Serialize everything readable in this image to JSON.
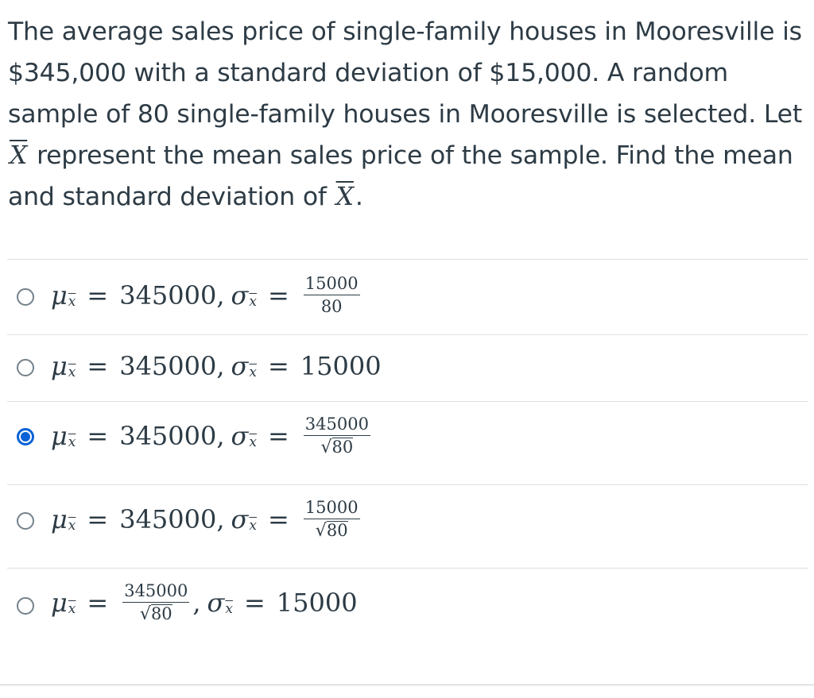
{
  "question": {
    "part1": "The average sales price of single-family houses in Mooresville is $345,000 with a standard deviation of $15,000. A random sample of 80 single-family houses in Mooresville is selected. Let",
    "symbol1": "X",
    "part2": "represent the mean sales price of the sample. Find the mean and standard deviation of",
    "symbol2": "X",
    "part3": "."
  },
  "answers": [
    {
      "mu_value": "345000",
      "sigma_num": "15000",
      "sigma_den": "80",
      "selected": false
    },
    {
      "mu_value": "345000",
      "sigma_value": "15000",
      "selected": false
    },
    {
      "mu_value": "345000",
      "sigma_num": "345000",
      "sigma_den": "80",
      "selected": true
    },
    {
      "mu_value": "345000",
      "sigma_num": "15000",
      "sigma_den": "80",
      "selected": false
    },
    {
      "mu_num": "345000",
      "mu_den": "80",
      "sigma_value": "15000",
      "selected": false
    }
  ],
  "symbols": {
    "mu": "μ",
    "sigma": "σ",
    "sub": "x",
    "equals": "=",
    "comma": ",",
    "sqrt": "√"
  },
  "colors": {
    "text": "#2d3b45",
    "radio_selected": "#0b62d6",
    "radio_border": "#73818a",
    "divider": "#dcdfe2"
  }
}
